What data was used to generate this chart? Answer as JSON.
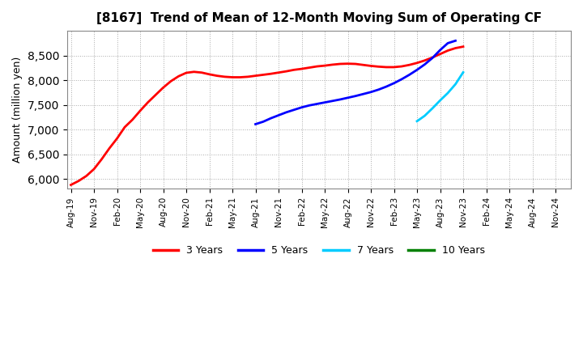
{
  "title": "[8167]  Trend of Mean of 12-Month Moving Sum of Operating CF",
  "ylabel": "Amount (million yen)",
  "ylim": [
    5800,
    9000
  ],
  "yticks": [
    6000,
    6500,
    7000,
    7500,
    8000,
    8500
  ],
  "background_color": "#ffffff",
  "grid_color": "#aaaaaa",
  "series": {
    "3years": {
      "color": "#ff0000",
      "label": "3 Years",
      "x_start_idx": 0,
      "data": [
        5880,
        5960,
        6060,
        6200,
        6400,
        6620,
        6820,
        7050,
        7200,
        7380,
        7550,
        7700,
        7850,
        7980,
        8080,
        8150,
        8170,
        8155,
        8120,
        8090,
        8070,
        8060,
        8060,
        8070,
        8090,
        8110,
        8130,
        8155,
        8180,
        8210,
        8230,
        8255,
        8280,
        8295,
        8315,
        8330,
        8335,
        8330,
        8310,
        8290,
        8275,
        8265,
        8265,
        8280,
        8310,
        8350,
        8400,
        8460,
        8530,
        8600,
        8650,
        8680
      ]
    },
    "5years": {
      "color": "#0000ff",
      "label": "5 Years",
      "x_start_idx": 24,
      "data": [
        7110,
        7160,
        7230,
        7290,
        7350,
        7400,
        7450,
        7490,
        7520,
        7550,
        7580,
        7610,
        7645,
        7680,
        7720,
        7760,
        7810,
        7870,
        7940,
        8020,
        8110,
        8210,
        8320,
        8450,
        8610,
        8750,
        8800
      ]
    },
    "7years": {
      "color": "#00ccff",
      "label": "7 Years",
      "x_start_idx": 45,
      "data": [
        7170,
        7280,
        7430,
        7590,
        7740,
        7920,
        8160
      ]
    },
    "10years": {
      "color": "#008000",
      "label": "10 Years",
      "x_start_idx": 51,
      "data": []
    }
  },
  "xtick_labels": [
    "Aug-19",
    "Nov-19",
    "Feb-20",
    "May-20",
    "Aug-20",
    "Nov-20",
    "Feb-21",
    "May-21",
    "Aug-21",
    "Nov-21",
    "Feb-22",
    "May-22",
    "Aug-22",
    "Nov-22",
    "Feb-23",
    "May-23",
    "Aug-23",
    "Nov-23",
    "Feb-24",
    "May-24",
    "Aug-24",
    "Nov-24"
  ],
  "xtick_indices": [
    0,
    3,
    6,
    9,
    12,
    15,
    18,
    21,
    24,
    27,
    30,
    33,
    36,
    39,
    42,
    45,
    48,
    51,
    54,
    57,
    60,
    63
  ]
}
